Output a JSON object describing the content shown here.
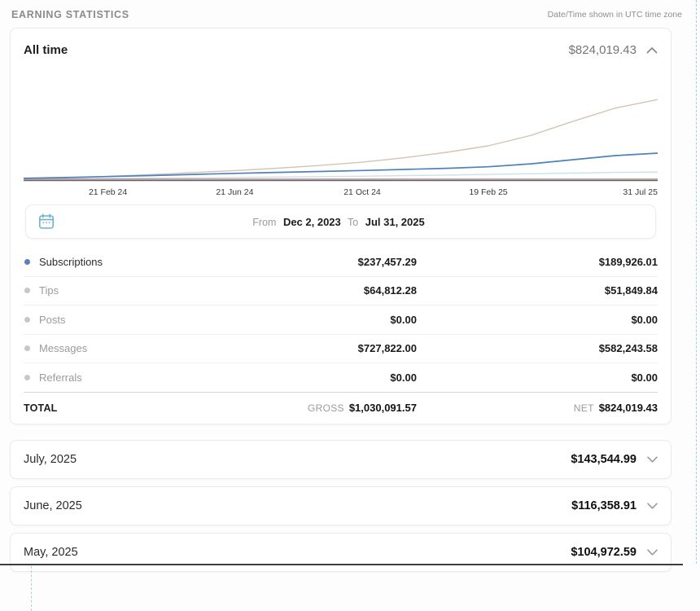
{
  "page": {
    "title": "EARNING STATISTICS",
    "timezone_note": "Date/Time shown in UTC time zone"
  },
  "all_time": {
    "label": "All time",
    "amount": "$824,019.43"
  },
  "chart_data": {
    "type": "line",
    "title": "All time earnings over time",
    "x_range": [
      "Dec 2, 2023",
      "Jul 31, 2025"
    ],
    "x_ticks": [
      {
        "label": "21 Feb 24",
        "t": 0.133
      },
      {
        "label": "21 Jun 24",
        "t": 0.333
      },
      {
        "label": "21 Oct 24",
        "t": 0.534
      },
      {
        "label": "19 Feb 25",
        "t": 0.733
      },
      {
        "label": "31 Jul 25",
        "t": 1.0
      }
    ],
    "t": [
      0,
      0.067,
      0.133,
      0.2,
      0.267,
      0.333,
      0.4,
      0.467,
      0.534,
      0.6,
      0.667,
      0.733,
      0.8,
      0.867,
      0.933,
      1
    ],
    "ymax": 950000,
    "ylim": [
      0,
      950000
    ],
    "grid": false,
    "legend_position": "table-below",
    "axis_color": "#5f6368",
    "series": [
      {
        "name": "Messages",
        "color": "#d6c3b6",
        "width": 1.4,
        "values": [
          2000,
          12000,
          25000,
          42000,
          60000,
          78000,
          100000,
          125000,
          155000,
          195000,
          245000,
          305000,
          400000,
          530000,
          650000,
          727822
        ]
      },
      {
        "name": "Tips",
        "color": "#ccdfe9",
        "width": 1.4,
        "values": [
          1000,
          3000,
          6000,
          9000,
          12000,
          15000,
          19000,
          23000,
          27000,
          32000,
          37000,
          43000,
          49000,
          56000,
          62000,
          64812
        ]
      },
      {
        "name": "Referrals",
        "color": "#d8d8d8",
        "width": 1.2,
        "values": [
          0,
          0,
          0,
          0,
          0,
          0,
          0,
          0,
          0,
          0,
          0,
          0,
          0,
          0,
          0,
          0
        ]
      },
      {
        "name": "Posts",
        "color": "#c18c8a",
        "width": 1.3,
        "values": [
          0,
          0,
          0,
          0,
          0,
          0,
          0,
          0,
          0,
          0,
          0,
          0,
          0,
          0,
          0,
          0
        ]
      },
      {
        "name": "Subscriptions",
        "color": "#4d82bb",
        "width": 1.7,
        "values": [
          8000,
          15000,
          24000,
          33000,
          43000,
          53000,
          62000,
          70000,
          79000,
          89000,
          99000,
          113000,
          140000,
          178000,
          215000,
          237457
        ]
      }
    ]
  },
  "date_range": {
    "from_label": "From",
    "from_value": "Dec 2, 2023",
    "to_label": "To",
    "to_value": "Jul 31, 2025"
  },
  "table": {
    "rows": [
      {
        "label": "Subscriptions",
        "gross": "$237,457.29",
        "net": "$189,926.01",
        "dot_color": "#5a7fbf",
        "active": true
      },
      {
        "label": "Tips",
        "gross": "$64,812.28",
        "net": "$51,849.84",
        "dot_color": "#c7c7c7",
        "active": false
      },
      {
        "label": "Posts",
        "gross": "$0.00",
        "net": "$0.00",
        "dot_color": "#c7c7c7",
        "active": false
      },
      {
        "label": "Messages",
        "gross": "$727,822.00",
        "net": "$582,243.58",
        "dot_color": "#c7c7c7",
        "active": false
      },
      {
        "label": "Referrals",
        "gross": "$0.00",
        "net": "$0.00",
        "dot_color": "#c7c7c7",
        "active": false
      }
    ],
    "total": {
      "label": "TOTAL",
      "gross_label": "GROSS",
      "gross": "$1,030,091.57",
      "net_label": "NET",
      "net": "$824,019.43"
    }
  },
  "month_cards": [
    {
      "label": "July, 2025",
      "amount": "$143,544.99"
    },
    {
      "label": "June, 2025",
      "amount": "$116,358.91"
    },
    {
      "label": "May, 2025",
      "amount": "$104,972.59"
    }
  ],
  "colors": {
    "accent_calendar": "#6db3ca",
    "subscriptions_line": "#4d82bb",
    "messages_line": "#d6c3b6",
    "tips_line": "#ccdfe9",
    "posts_line": "#c18c8a",
    "chevron": "#8a8a8a"
  }
}
